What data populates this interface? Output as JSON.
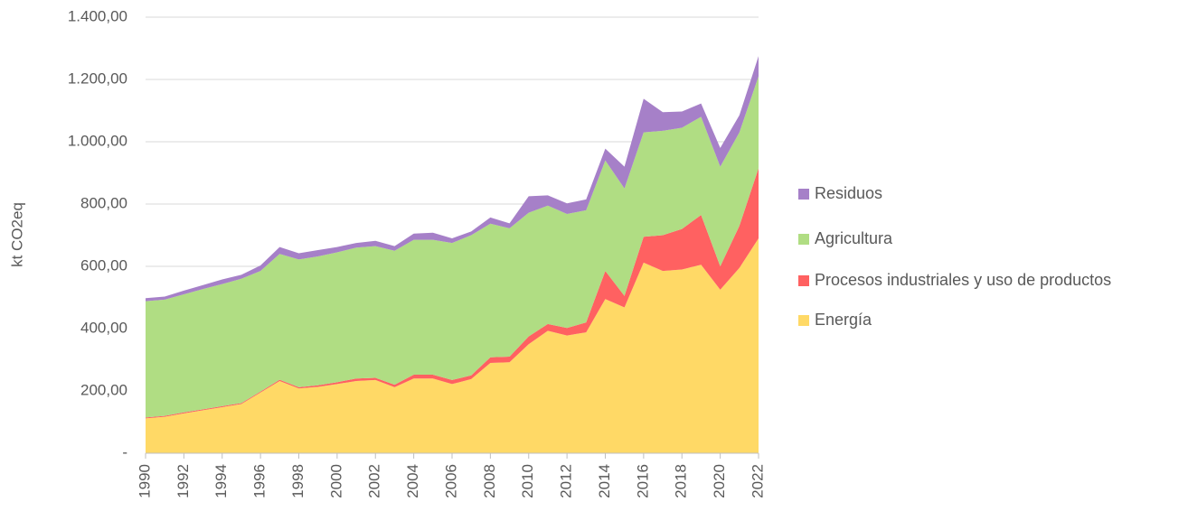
{
  "chart_data": {
    "type": "stacked_area",
    "y_label": "kt CO2eq",
    "x": [
      1990,
      1991,
      1992,
      1993,
      1994,
      1995,
      1996,
      1997,
      1998,
      1999,
      2000,
      2001,
      2002,
      2003,
      2004,
      2005,
      2006,
      2007,
      2008,
      2009,
      2010,
      2011,
      2012,
      2013,
      2014,
      2015,
      2016,
      2017,
      2018,
      2019,
      2020,
      2021,
      2022
    ],
    "xlim": [
      1990,
      2022
    ],
    "xticks": [
      1990,
      1992,
      1994,
      1996,
      1998,
      2000,
      2002,
      2004,
      2006,
      2008,
      2010,
      2012,
      2014,
      2016,
      2018,
      2020,
      2022
    ],
    "ylim": [
      0,
      1400
    ],
    "yticks": [
      {
        "value": 0,
        "label": "-"
      },
      {
        "value": 200,
        "label": "200,00"
      },
      {
        "value": 400,
        "label": "400,00"
      },
      {
        "value": 600,
        "label": "600,00"
      },
      {
        "value": 800,
        "label": "800,00"
      },
      {
        "value": 1000,
        "label": "1.000,00"
      },
      {
        "value": 1200,
        "label": "1.200,00"
      },
      {
        "value": 1400,
        "label": "1.400,00"
      }
    ],
    "grid": true,
    "legend": "right",
    "series": [
      {
        "name": "Energía",
        "color": "#ffd966",
        "values": [
          112,
          117,
          128,
          138,
          148,
          158,
          195,
          232,
          208,
          213,
          222,
          232,
          235,
          212,
          240,
          240,
          222,
          238,
          290,
          292,
          350,
          393,
          378,
          388,
          495,
          468,
          612,
          585,
          590,
          605,
          525,
          595,
          690
        ]
      },
      {
        "name": "Procesos industriales y uso de productos",
        "color": "#ff6161",
        "values": [
          3,
          3,
          3,
          3,
          3,
          3,
          3,
          4,
          4,
          5,
          6,
          8,
          7,
          8,
          12,
          12,
          13,
          12,
          18,
          18,
          25,
          22,
          24,
          32,
          90,
          37,
          83,
          115,
          130,
          160,
          75,
          135,
          225
        ]
      },
      {
        "name": "Agricultura",
        "color": "#b0dd83",
        "values": [
          373,
          373,
          379,
          386,
          392,
          399,
          387,
          404,
          410,
          414,
          417,
          420,
          423,
          430,
          433,
          433,
          440,
          450,
          429,
          412,
          397,
          380,
          366,
          360,
          355,
          345,
          335,
          335,
          325,
          315,
          320,
          300,
          295
        ]
      },
      {
        "name": "Residuos",
        "color": "#a680c8",
        "values": [
          10,
          10,
          12,
          13,
          15,
          13,
          18,
          22,
          20,
          20,
          17,
          15,
          17,
          15,
          20,
          23,
          15,
          12,
          20,
          16,
          53,
          33,
          34,
          35,
          38,
          70,
          108,
          60,
          52,
          43,
          60,
          55,
          65
        ]
      }
    ]
  }
}
